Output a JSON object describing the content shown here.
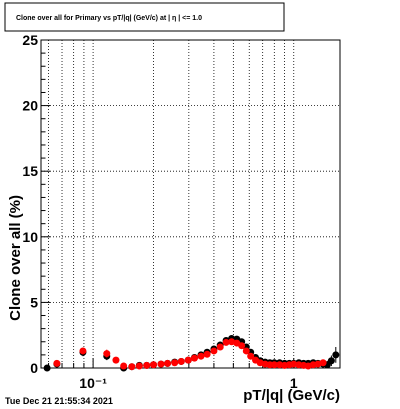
{
  "chart_data": {
    "type": "scatter",
    "title": "Clone  over all for Primary vs pT/|q| (GeV/c) at | η | <= 1.0",
    "xlabel": "pT/|q| (GeV/c)",
    "ylabel": "Clone  over all (%)",
    "x_scale": "log",
    "xlim": [
      0.055,
      1.7
    ],
    "ylim": [
      0,
      25
    ],
    "grid": true,
    "x_major_ticks": [
      {
        "value": 0.1,
        "label": "10⁻¹"
      },
      {
        "value": 1,
        "label": "1"
      }
    ],
    "y_ticks": [
      0,
      5,
      10,
      15,
      20,
      25
    ],
    "series": [
      {
        "marker_color": "#000000",
        "x": [
          0.059,
          0.066,
          0.089,
          0.117,
          0.142,
          0.156,
          0.17,
          0.185,
          0.2,
          0.218,
          0.235,
          0.255,
          0.275,
          0.298,
          0.32,
          0.345,
          0.37,
          0.4,
          0.43,
          0.46,
          0.49,
          0.52,
          0.55,
          0.58,
          0.61,
          0.645,
          0.68,
          0.72,
          0.76,
          0.8,
          0.85,
          0.9,
          0.95,
          1.0,
          1.06,
          1.12,
          1.18,
          1.25,
          1.32,
          1.4,
          1.47,
          1.54,
          1.62
        ],
        "y": [
          0.0,
          0.3,
          1.2,
          0.9,
          0.0,
          0.1,
          0.2,
          0.2,
          0.25,
          0.3,
          0.35,
          0.45,
          0.5,
          0.6,
          0.8,
          1.0,
          1.2,
          1.45,
          1.75,
          2.1,
          2.25,
          2.2,
          2.0,
          1.6,
          1.2,
          0.8,
          0.55,
          0.45,
          0.4,
          0.4,
          0.4,
          0.35,
          0.35,
          0.35,
          0.4,
          0.35,
          0.35,
          0.4,
          0.35,
          0.3,
          0.25,
          0.55,
          1.0
        ],
        "yerr": [
          0.1,
          0.15,
          0.3,
          0.3,
          0.05,
          0.05,
          0.05,
          0.05,
          0.05,
          0.05,
          0.05,
          0.05,
          0.05,
          0.06,
          0.07,
          0.08,
          0.09,
          0.1,
          0.1,
          0.12,
          0.12,
          0.12,
          0.12,
          0.1,
          0.1,
          0.08,
          0.08,
          0.08,
          0.08,
          0.08,
          0.1,
          0.1,
          0.1,
          0.12,
          0.12,
          0.12,
          0.15,
          0.2,
          0.2,
          0.25,
          0.3,
          0.4,
          0.6
        ]
      },
      {
        "marker_color": "#ff0000",
        "x": [
          0.066,
          0.089,
          0.117,
          0.13,
          0.142,
          0.156,
          0.17,
          0.185,
          0.2,
          0.218,
          0.235,
          0.255,
          0.275,
          0.298,
          0.32,
          0.345,
          0.37,
          0.4,
          0.43,
          0.46,
          0.49,
          0.52,
          0.55,
          0.58,
          0.61,
          0.645,
          0.68,
          0.72,
          0.76,
          0.8,
          0.85,
          0.9,
          0.95,
          1.0,
          1.06,
          1.12,
          1.18,
          1.25,
          1.32,
          1.4
        ],
        "y": [
          0.35,
          1.3,
          1.1,
          0.6,
          0.15,
          0.1,
          0.15,
          0.2,
          0.25,
          0.3,
          0.35,
          0.4,
          0.5,
          0.6,
          0.75,
          0.9,
          1.05,
          1.3,
          1.6,
          1.95,
          2.0,
          1.9,
          1.7,
          1.3,
          0.9,
          0.6,
          0.4,
          0.3,
          0.25,
          0.25,
          0.25,
          0.2,
          0.25,
          0.3,
          0.25,
          0.2,
          0.15,
          0.25,
          0.3,
          0.4
        ],
        "yerr": [
          0.15,
          0.25,
          0.3,
          0.2,
          0.05,
          0.05,
          0.05,
          0.05,
          0.05,
          0.05,
          0.05,
          0.05,
          0.05,
          0.06,
          0.07,
          0.08,
          0.09,
          0.1,
          0.1,
          0.12,
          0.12,
          0.12,
          0.12,
          0.1,
          0.1,
          0.08,
          0.08,
          0.08,
          0.08,
          0.08,
          0.1,
          0.1,
          0.1,
          0.12,
          0.12,
          0.12,
          0.15,
          0.2,
          0.2,
          0.25
        ]
      }
    ]
  },
  "footer": {
    "date": "Tue Dec 21 21:55:34 2021"
  }
}
